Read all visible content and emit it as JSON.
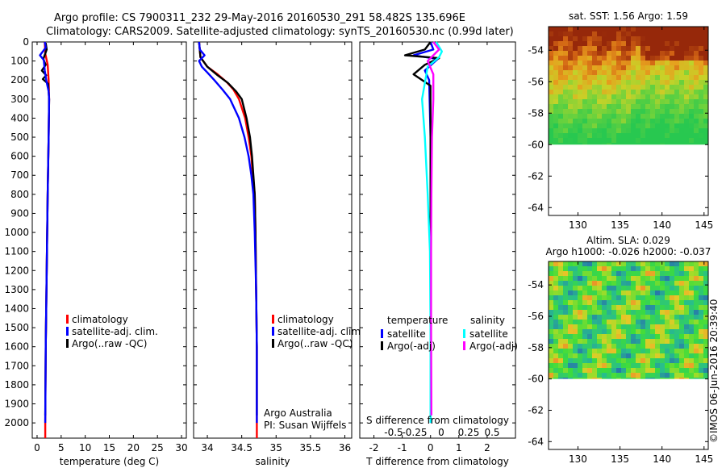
{
  "header": {
    "line1": "Argo profile: CS 7900311_232 29-May-2016 20160530_291 58.482S 135.696E",
    "line2": "Climatology: CARS2009. Satellite-adjusted climatology: synTS_20160530.nc (0.99d later)"
  },
  "watermark": "©IMOS 06-Jun-2016 20:39:40",
  "colors": {
    "red": "#ff0000",
    "blue": "#0000ff",
    "black": "#000000",
    "cyan": "#00ffff",
    "magenta": "#ff00ff"
  },
  "chart_data": [
    {
      "id": "temp",
      "type": "line",
      "xlabel": "temperature (deg C)",
      "xlim": [
        -1,
        31
      ],
      "xticks": [
        0,
        5,
        10,
        15,
        20,
        25,
        30
      ],
      "ylim": [
        2080,
        0
      ],
      "yticks": [
        0,
        100,
        200,
        300,
        400,
        500,
        600,
        700,
        800,
        900,
        1000,
        1100,
        1200,
        1300,
        1400,
        1500,
        1600,
        1700,
        1800,
        1900,
        2000
      ],
      "legend": [
        "climatology",
        "satellite-adj. clim.",
        "Argo(..raw -QC)"
      ],
      "series": [
        {
          "name": "climatology",
          "color": "red",
          "points": [
            [
              1.6,
              0
            ],
            [
              1.7,
              60
            ],
            [
              2.2,
              120
            ],
            [
              2.4,
              200
            ],
            [
              2.5,
              300
            ],
            [
              2.4,
              500
            ],
            [
              2.2,
              800
            ],
            [
              2.0,
              1200
            ],
            [
              1.8,
              1600
            ],
            [
              1.7,
              2000
            ],
            [
              1.7,
              2080
            ]
          ]
        },
        {
          "name": "Argo(..raw -QC)",
          "color": "black",
          "points": [
            [
              1.8,
              5
            ],
            [
              2.0,
              40
            ],
            [
              1.3,
              90
            ],
            [
              1.8,
              120
            ],
            [
              1.0,
              150
            ],
            [
              1.9,
              175
            ],
            [
              1.2,
              195
            ],
            [
              2.3,
              220
            ],
            [
              2.5,
              300
            ],
            [
              2.4,
              500
            ],
            [
              2.2,
              800
            ],
            [
              2.0,
              1200
            ],
            [
              1.8,
              1600
            ],
            [
              1.7,
              1960
            ]
          ]
        },
        {
          "name": "satellite-adj. clim.",
          "color": "blue",
          "points": [
            [
              1.6,
              0
            ],
            [
              1.8,
              30
            ],
            [
              0.6,
              70
            ],
            [
              1.4,
              95
            ],
            [
              1.6,
              150
            ],
            [
              1.9,
              200
            ],
            [
              2.4,
              260
            ],
            [
              2.5,
              300
            ],
            [
              2.4,
              500
            ],
            [
              2.2,
              800
            ],
            [
              2.0,
              1200
            ],
            [
              1.8,
              1600
            ],
            [
              1.7,
              2000
            ]
          ]
        }
      ]
    },
    {
      "id": "sal",
      "type": "line",
      "xlabel": "salinity",
      "xlim": [
        33.8,
        36.1
      ],
      "xticks": [
        34,
        34.5,
        35,
        35.5,
        36
      ],
      "ylim": [
        2080,
        0
      ],
      "legend": [
        "climatology",
        "satellite-adj. clim.",
        "Argo(..raw -QC)"
      ],
      "annotation": [
        "Argo Australia",
        "PI: Susan Wijffels"
      ],
      "series": [
        {
          "name": "climatology",
          "color": "red",
          "points": [
            [
              33.88,
              0
            ],
            [
              33.9,
              80
            ],
            [
              34.0,
              130
            ],
            [
              34.15,
              170
            ],
            [
              34.28,
              210
            ],
            [
              34.38,
              250
            ],
            [
              34.46,
              300
            ],
            [
              34.55,
              400
            ],
            [
              34.6,
              500
            ],
            [
              34.64,
              600
            ],
            [
              34.66,
              700
            ],
            [
              34.69,
              800
            ],
            [
              34.7,
              1000
            ],
            [
              34.71,
              1300
            ],
            [
              34.72,
              1600
            ],
            [
              34.72,
              2000
            ],
            [
              34.72,
              2080
            ]
          ]
        },
        {
          "name": "Argo(..raw -QC)",
          "color": "black",
          "points": [
            [
              33.88,
              0
            ],
            [
              33.9,
              80
            ],
            [
              34.0,
              130
            ],
            [
              34.15,
              175
            ],
            [
              34.3,
              215
            ],
            [
              34.42,
              260
            ],
            [
              34.5,
              300
            ],
            [
              34.57,
              400
            ],
            [
              34.62,
              500
            ],
            [
              34.65,
              600
            ],
            [
              34.67,
              700
            ],
            [
              34.69,
              800
            ],
            [
              34.7,
              1000
            ],
            [
              34.71,
              1300
            ],
            [
              34.72,
              1600
            ],
            [
              34.72,
              1960
            ]
          ]
        },
        {
          "name": "satellite-adj. clim.",
          "color": "blue",
          "points": [
            [
              33.88,
              0
            ],
            [
              33.89,
              40
            ],
            [
              33.96,
              70
            ],
            [
              33.88,
              100
            ],
            [
              33.92,
              130
            ],
            [
              34.0,
              160
            ],
            [
              34.1,
              200
            ],
            [
              34.22,
              250
            ],
            [
              34.33,
              300
            ],
            [
              34.46,
              400
            ],
            [
              34.54,
              500
            ],
            [
              34.6,
              600
            ],
            [
              34.64,
              700
            ],
            [
              34.67,
              800
            ],
            [
              34.69,
              1000
            ],
            [
              34.71,
              1300
            ],
            [
              34.72,
              1600
            ],
            [
              34.72,
              2000
            ]
          ]
        }
      ]
    },
    {
      "id": "diff",
      "type": "line",
      "xlabel": "T difference from climatology",
      "xlim": [
        -2.5,
        3.0
      ],
      "xticks": [
        -2,
        -1,
        0,
        1,
        2
      ],
      "secondary_axis_label": "S difference from climatology",
      "secondary_ticks": [
        "-0.5",
        "-0.25",
        "0",
        "0.25",
        "0.5"
      ],
      "ylim": [
        2080,
        0
      ],
      "legend_titles": [
        "temperature",
        "salinity"
      ],
      "legend": [
        "satellite",
        "Argo(-adj)",
        "satellite",
        "Argo(-adj)"
      ],
      "series": [
        {
          "name": "temperature satellite",
          "color": "blue",
          "points": [
            [
              0,
              0
            ],
            [
              0.1,
              40
            ],
            [
              -0.6,
              70
            ],
            [
              0.25,
              90
            ],
            [
              -0.2,
              150
            ],
            [
              -0.05,
              200
            ],
            [
              0,
              500
            ],
            [
              0,
              1000
            ],
            [
              0,
              2000
            ]
          ]
        },
        {
          "name": "temperature Argo(-adj)",
          "color": "black",
          "points": [
            [
              0,
              0
            ],
            [
              -0.2,
              40
            ],
            [
              -0.9,
              70
            ],
            [
              0.3,
              85
            ],
            [
              -0.2,
              120
            ],
            [
              -0.6,
              170
            ],
            [
              0,
              230
            ],
            [
              0,
              500
            ],
            [
              0,
              1000
            ],
            [
              0,
              1960
            ]
          ]
        },
        {
          "name": "salinity satellite",
          "color": "cyan",
          "points": [
            [
              0.2,
              0
            ],
            [
              0.4,
              50
            ],
            [
              0.3,
              80
            ],
            [
              -0.1,
              130
            ],
            [
              -0.3,
              300
            ],
            [
              -0.2,
              500
            ],
            [
              -0.1,
              800
            ],
            [
              -0.02,
              1100
            ],
            [
              0,
              1500
            ],
            [
              0,
              2000
            ]
          ]
        },
        {
          "name": "salinity Argo(-adj)",
          "color": "magenta",
          "points": [
            [
              0.1,
              0
            ],
            [
              0.3,
              40
            ],
            [
              -0.1,
              100
            ],
            [
              0.1,
              170
            ],
            [
              0.1,
              300
            ],
            [
              0.05,
              500
            ],
            [
              0.03,
              800
            ],
            [
              0.02,
              1100
            ],
            [
              0.02,
              1500
            ],
            [
              0.03,
              1960
            ]
          ]
        }
      ]
    }
  ],
  "maps": [
    {
      "id": "sst",
      "title": "sat. SST: 1.56 Argo: 1.59",
      "title2": "",
      "lon_ticks": [
        130,
        135,
        140,
        145
      ],
      "lat_ticks": [
        -54,
        -56,
        -58,
        -60,
        -62,
        -64
      ],
      "lonlim": [
        126.5,
        145.5
      ],
      "latlim": [
        -64.5,
        -52.5
      ],
      "data_lat_range": [
        -52.5,
        -60
      ]
    },
    {
      "id": "sla",
      "title": "Altim. SLA: 0.029",
      "title2": "Argo h1000: -0.026 h2000: -0.037",
      "lon_ticks": [
        130,
        135,
        140,
        145
      ],
      "lat_ticks": [
        -54,
        -56,
        -58,
        -60,
        -62,
        -64
      ],
      "lonlim": [
        126.5,
        145.5
      ],
      "latlim": [
        -64.5,
        -52.5
      ],
      "data_lat_range": [
        -52.5,
        -60
      ]
    }
  ]
}
